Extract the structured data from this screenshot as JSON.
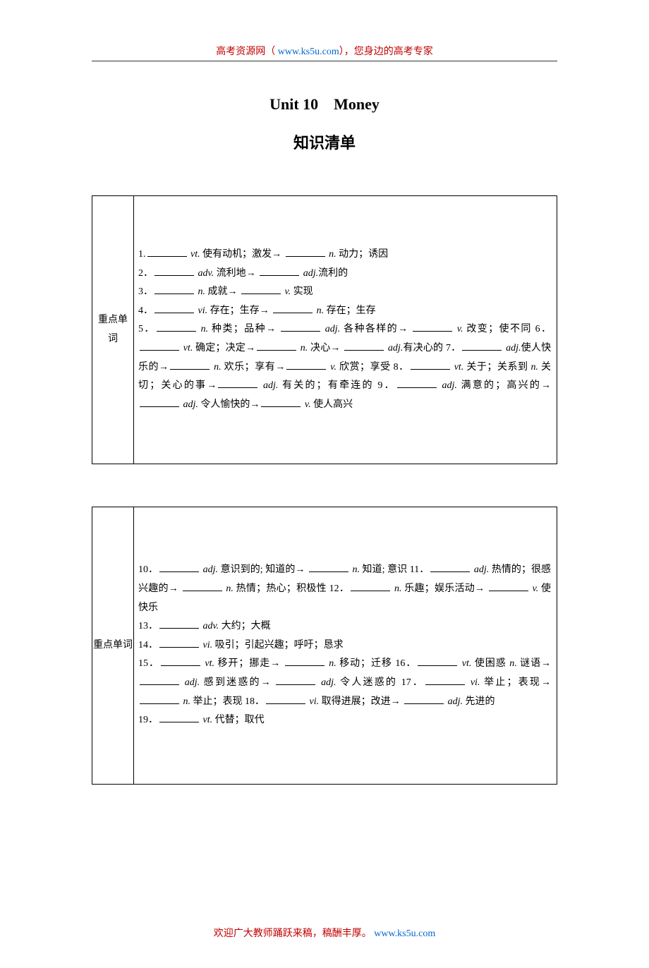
{
  "header": {
    "text_prefix": "高考资源网（ ",
    "url": "www.ks5u.com",
    "text_suffix": "），您身边的高考专家"
  },
  "title1": "Unit 10 Money",
  "title2": "知识清单",
  "table1": {
    "label": "重点单\n词",
    "items": {
      "i1a": "1.",
      "i1_vt": "vt.",
      "i1_zh1": " 使有动机；激发→ ",
      "i1_n": "n.",
      "i1_zh2": " 动力；诱因",
      "i2a": "2．",
      "i2_adv": "adv.",
      "i2_zh1": " 流利地→ ",
      "i2_adj": "adj.",
      "i2_zh2": "流利的",
      "i3a": "3．",
      "i3_n": "n.",
      "i3_zh1": " 成就→ ",
      "i3_v": "v.",
      "i3_zh2": " 实现",
      "i4a": "4．",
      "i4_vi": "vi.",
      "i4_zh1": " 存在；生存→ ",
      "i4_n": "n.",
      "i4_zh2": " 存在；生存",
      "i5a": "5．",
      "i5_n": "n.",
      "i5_zh1": " 种类；品种→ ",
      "i5_adj": "adj.",
      "i5_zh2": " 各种各样的→ ",
      "i5_v": "v.",
      "i5_zh3": " 改变；使不同 6．",
      "i6_vt": "vt.",
      "i6_zh1": " 确定；决定→",
      "i6_n": "n.",
      "i6_zh2": " 决心→ ",
      "i6_adj": "adj.",
      "i6_zh3": "有决心的 7．",
      "i7_adj": "adj.",
      "i7_zh1": "使人快乐的→",
      "i7_n": "n.",
      "i7_zh2": " 欢乐；享有→",
      "i7_v": "v.",
      "i7_zh3": " 欣赏；享受 8．",
      "i8_vt": "vt.",
      "i8_zh1": " 关于；关系到 ",
      "i8_n": "n.",
      "i8_zh2": " 关切；关心的事→",
      "i8_adj": "adj.",
      "i8_zh3": " 有关的；有牵连的 9．",
      "i9_adj": "adj.",
      "i9_zh1": " 满意的；高兴的→ ",
      "i9_adj2": "adj.",
      "i9_zh2": " 令人愉快的→",
      "i9_v": "v.",
      "i9_zh3": " 使人高兴"
    }
  },
  "table2": {
    "label": "重点单词",
    "items": {
      "i10a": "10．",
      "i10_adj": "adj.",
      "i10_zh1": " 意识到的; 知道的→ ",
      "i10_n": "n.",
      "i10_zh2": " 知道; 意识 11．",
      "i11_adj": "adj.",
      "i11_zh1": " 热情的；很感兴趣的→ ",
      "i11_n": "n.",
      "i11_zh2": " 热情；热心；积极性 12．",
      "i12_n": "n.",
      "i12_zh1": " 乐趣；娱乐活动→ ",
      "i12_v": "v.",
      "i12_zh2": " 使快乐",
      "i13a": "13．",
      "i13_adv": "adv.",
      "i13_zh1": " 大约；大概",
      "i14a": "14．",
      "i14_vi": "vi.",
      "i14_zh1": " 吸引；引起兴趣；呼吁；恳求",
      "i15a": "15．",
      "i15_vt": "vt.",
      "i15_zh1": " 移开；挪走→ ",
      "i15_n": "n.",
      "i15_zh2": " 移动；迁移 16．",
      "i16_vt": "vt.",
      "i16_zh1": " 使困惑 ",
      "i16_n": "n.",
      "i16_zh2": " 谜语→ ",
      "i16_adj1": "adj.",
      "i16_zh3": " 感到迷惑的→ ",
      "i16_adj2": "adj.",
      "i16_zh4": " 令人迷惑的 17．",
      "i17_vi": "vi.",
      "i17_zh1": " 举止；表现→ ",
      "i17_n": "n.",
      "i17_zh2": " 举止；表现 18．",
      "i18_vi": "vi.",
      "i18_zh1": " 取得进展；改进→ ",
      "i18_adj": "adj.",
      "i18_zh2": " 先进的",
      "i19a": "19．",
      "i19_vt": "vt.",
      "i19_zh1": " 代替；取代"
    }
  },
  "footer": {
    "text_prefix": "欢迎广大教师踊跃来稿，稿酬丰厚。 ",
    "url": "www.ks5u.com"
  }
}
